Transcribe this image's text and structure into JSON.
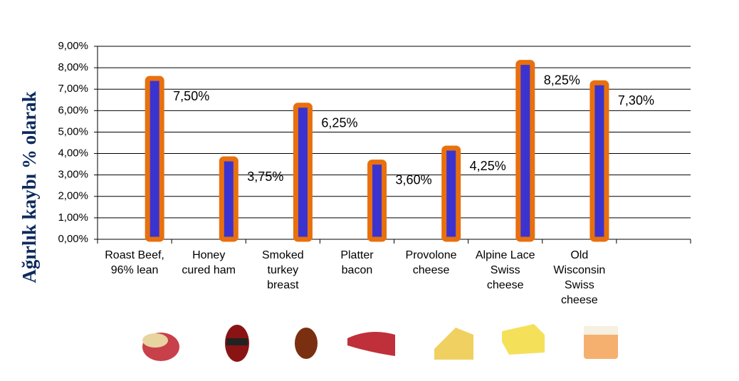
{
  "chart_data": {
    "type": "bar",
    "ylabel": "Ağırlık kaybı % olarak",
    "categories": [
      "Roast Beef, 96% lean",
      "Honey cured ham",
      "Smoked turkey breast",
      "Platter bacon",
      "Provolone cheese",
      "Alpine Lace Swiss cheese",
      "Old Wisconsin Swiss cheese",
      null
    ],
    "values": [
      7.5,
      3.75,
      6.25,
      3.6,
      4.25,
      8.25,
      7.3,
      null
    ],
    "value_labels": [
      "7,50%",
      "3,75%",
      "6,25%",
      "3,60%",
      "4,25%",
      "8,25%",
      "7,30%",
      null
    ],
    "color": "#3b33d0",
    "edge_color": "#e8700e",
    "ylim": [
      0,
      9
    ],
    "yticks": [
      {
        "value": 0,
        "label": "0,00%"
      },
      {
        "value": 1,
        "label": "1,00%"
      },
      {
        "value": 2,
        "label": "2,00%"
      },
      {
        "value": 3,
        "label": "3,00%"
      },
      {
        "value": 4,
        "label": "4,00%"
      },
      {
        "value": 5,
        "label": "5,00%"
      },
      {
        "value": 6,
        "label": "6,00%"
      },
      {
        "value": 7,
        "label": "7,00%"
      },
      {
        "value": 8,
        "label": "8,00%"
      },
      {
        "value": 9,
        "label": "9,00%"
      }
    ],
    "grid": true
  }
}
